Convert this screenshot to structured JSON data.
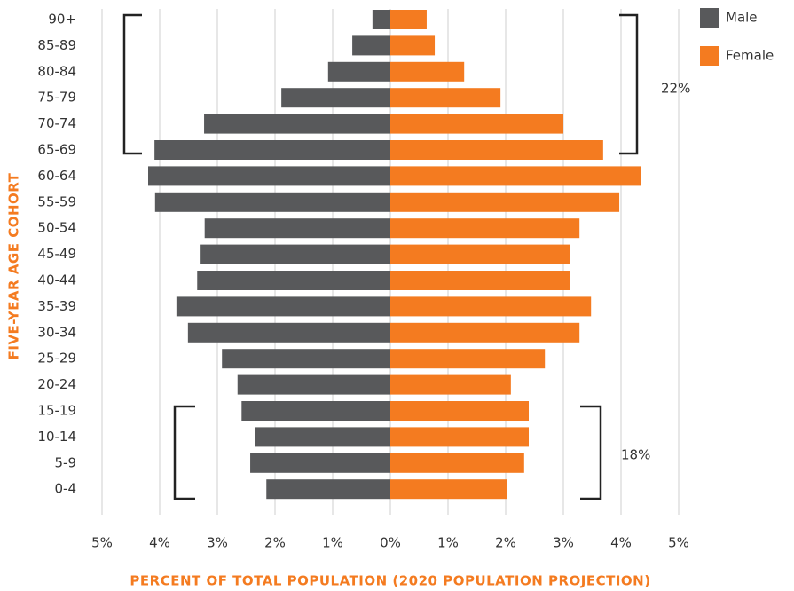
{
  "chart_data": {
    "type": "pyramid",
    "xlabel": "PERCENT OF TOTAL POPULATION (2020 POPULATION PROJECTION)",
    "ylabel": "FIVE-YEAR AGE COHORT",
    "categories": [
      "90+",
      "85-89",
      "80-84",
      "75-79",
      "70-74",
      "65-69",
      "60-64",
      "55-59",
      "50-54",
      "45-49",
      "40-44",
      "35-39",
      "30-34",
      "25-29",
      "20-24",
      "15-19",
      "10-14",
      "5-9",
      "0-4"
    ],
    "series": [
      {
        "name": "Male",
        "color": "#58595b",
        "side": "left",
        "values": [
          0.31,
          0.66,
          1.08,
          1.89,
          3.23,
          4.09,
          4.2,
          4.08,
          3.22,
          3.29,
          3.35,
          3.71,
          3.51,
          2.92,
          2.65,
          2.58,
          2.34,
          2.43,
          2.15
        ]
      },
      {
        "name": "Female",
        "color": "#f47b20",
        "side": "right",
        "values": [
          0.63,
          0.77,
          1.28,
          1.91,
          3.0,
          3.69,
          4.35,
          3.97,
          3.28,
          3.11,
          3.11,
          3.48,
          3.28,
          2.68,
          2.09,
          2.4,
          2.4,
          2.32,
          2.03
        ]
      }
    ],
    "xlim": [
      -5,
      5
    ],
    "xticks": [
      {
        "value": -5,
        "label": "5%"
      },
      {
        "value": -4,
        "label": "4%"
      },
      {
        "value": -3,
        "label": "3%"
      },
      {
        "value": -2,
        "label": "2%"
      },
      {
        "value": -1,
        "label": "1%"
      },
      {
        "value": 0,
        "label": "0%"
      },
      {
        "value": 1,
        "label": "1%"
      },
      {
        "value": 2,
        "label": "2%"
      },
      {
        "value": 3,
        "label": "3%"
      },
      {
        "value": 4,
        "label": "4%"
      },
      {
        "value": 5,
        "label": "5%"
      }
    ],
    "grid": true,
    "legend": "top-right",
    "annotations": [
      "22%",
      "18%"
    ]
  }
}
